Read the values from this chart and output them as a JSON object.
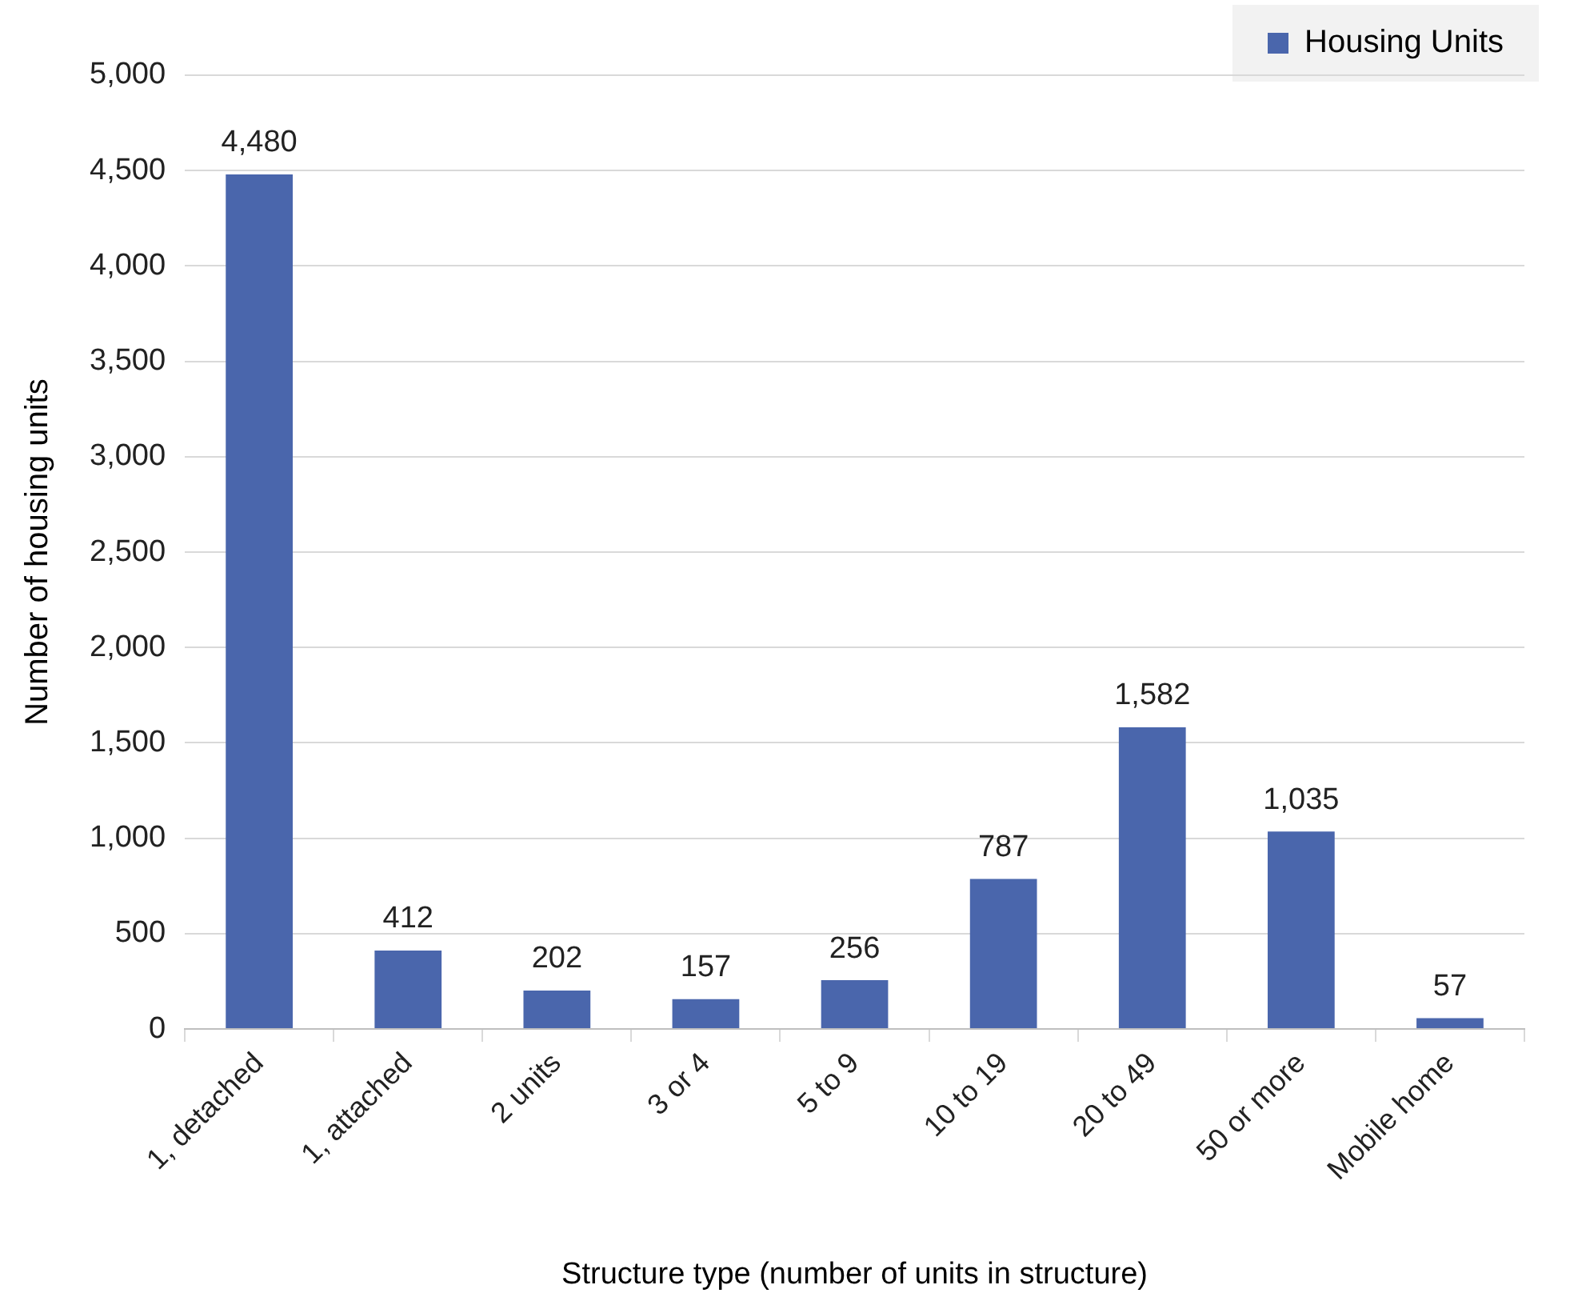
{
  "chart_data": {
    "type": "bar",
    "xlabel": "Structure type (number of units in structure)",
    "ylabel": "Number of housing units",
    "categories": [
      "1, detached",
      "1, attached",
      "2 units",
      "3 or 4",
      "5 to 9",
      "10 to 19",
      "20 to 49",
      "50 or more",
      "Mobile home"
    ],
    "series": [
      {
        "name": "Housing Units",
        "color": "#4a66ac",
        "values": [
          4480,
          412,
          202,
          157,
          256,
          787,
          1582,
          1035,
          57
        ],
        "value_labels": [
          "4,480",
          "412",
          "202",
          "157",
          "256",
          "787",
          "1,582",
          "1,035",
          "57"
        ]
      }
    ],
    "ylim": [
      0,
      5000
    ],
    "yticks": [
      {
        "value": 0,
        "label": "0"
      },
      {
        "value": 500,
        "label": "500"
      },
      {
        "value": 1000,
        "label": "1,000"
      },
      {
        "value": 1500,
        "label": "1,500"
      },
      {
        "value": 2000,
        "label": "2,000"
      },
      {
        "value": 2500,
        "label": "2,500"
      },
      {
        "value": 3000,
        "label": "3,000"
      },
      {
        "value": 3500,
        "label": "3,500"
      },
      {
        "value": 4000,
        "label": "4,000"
      },
      {
        "value": 4500,
        "label": "4,500"
      },
      {
        "value": 5000,
        "label": "5,000"
      }
    ],
    "grid": "y",
    "legend": "top right"
  }
}
